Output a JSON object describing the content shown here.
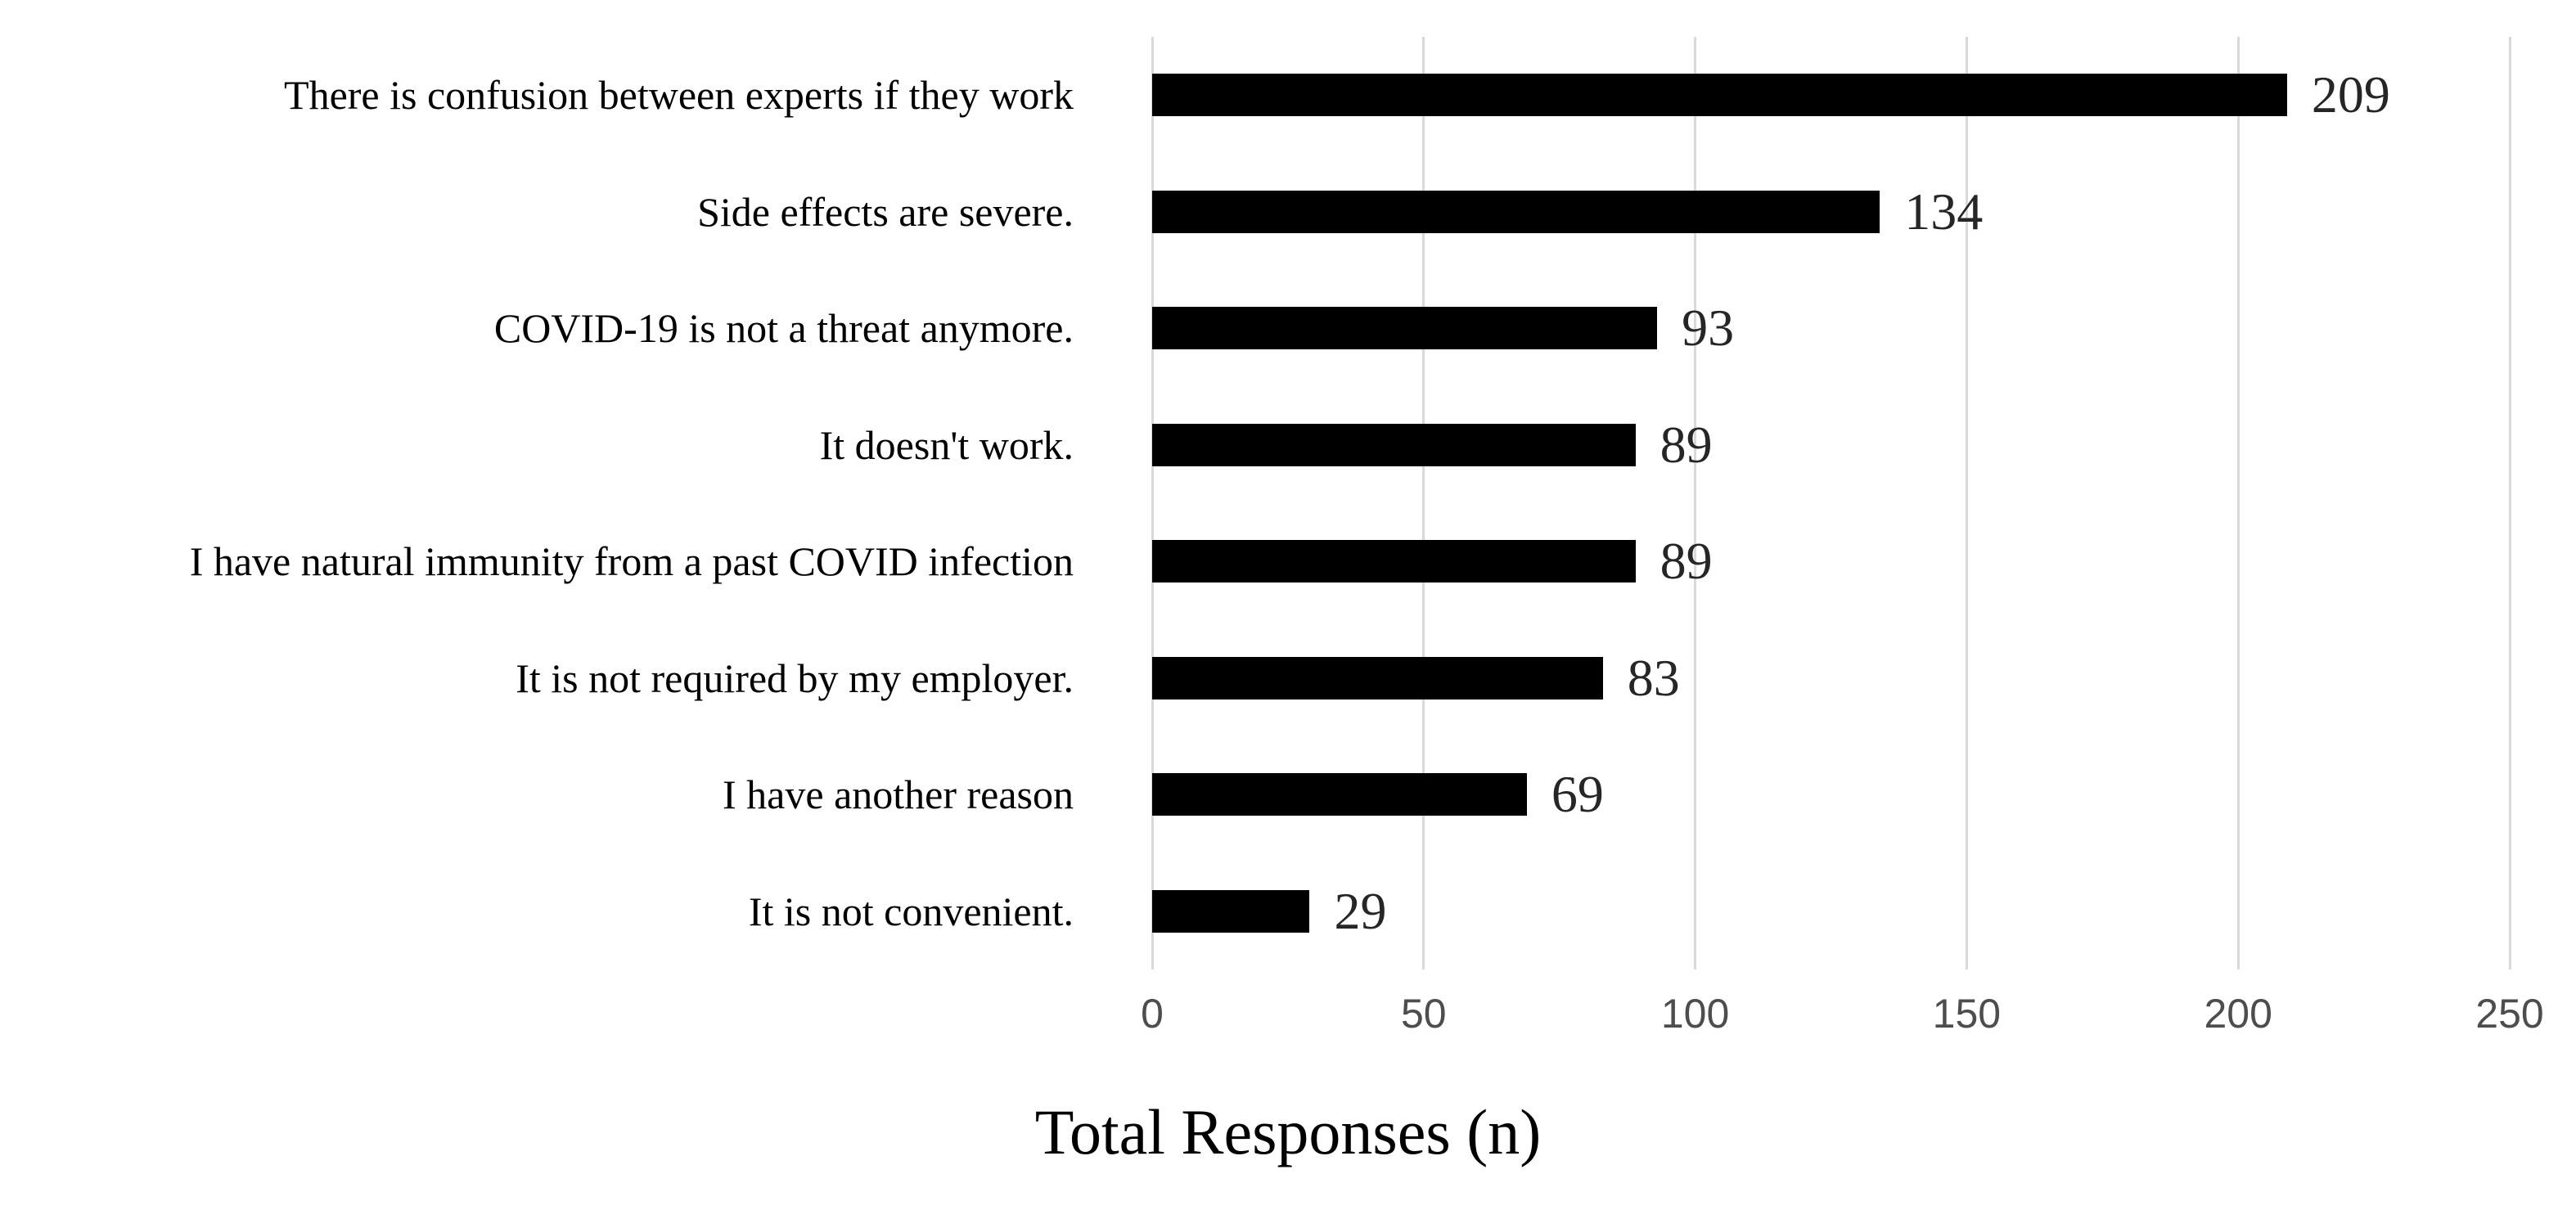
{
  "chart_data": {
    "type": "bar",
    "orientation": "horizontal",
    "title": "",
    "categories": [
      "There is confusion between experts if they work",
      "Side effects are severe.",
      "COVID-19 is not a threat anymore.",
      "It doesn't work.",
      "I have natural immunity from a past COVID infection",
      "It is not required by my employer.",
      "I have another reason",
      "It is not convenient."
    ],
    "values": [
      209,
      134,
      93,
      89,
      89,
      83,
      69,
      29
    ],
    "data_labels": [
      "209",
      "134",
      "93",
      "89",
      "89",
      "83",
      "69",
      "29"
    ],
    "xlabel": "Total Responses (n)",
    "ylabel": "",
    "xlim": [
      0,
      250
    ],
    "xticks": [
      0,
      50,
      100,
      150,
      200,
      250
    ],
    "grid": "vertical-gridlines-only",
    "legend": "none",
    "bar_color": "#000000",
    "gridline_color": "#d9d9d9",
    "tick_label_color": "#4d4d4d",
    "value_label_color": "#262626",
    "category_label_color": "#000000",
    "background_color": "#ffffff"
  }
}
